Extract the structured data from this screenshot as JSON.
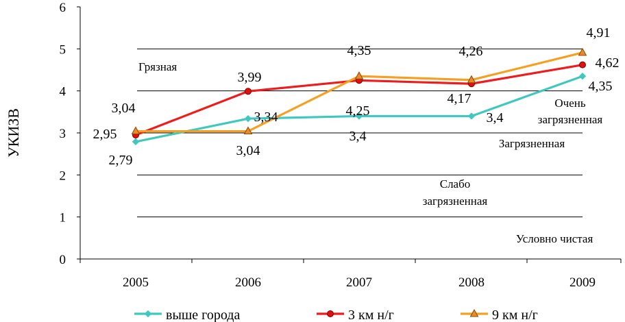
{
  "chart_data": {
    "type": "line",
    "ylabel": "УКИЗВ",
    "ylim": [
      0,
      6
    ],
    "yticks": [
      "0",
      "1",
      "2",
      "3",
      "4",
      "5",
      "6"
    ],
    "categories": [
      "2005",
      "2006",
      "2007",
      "2008",
      "2009"
    ],
    "series": [
      {
        "name": "выше города",
        "values": [
          2.79,
          3.34,
          3.4,
          3.4,
          4.35
        ],
        "labels": [
          "2,79",
          "3,34",
          "3,4",
          "3,4",
          "4,35"
        ],
        "color": "#40C8C0",
        "marker": "diamond"
      },
      {
        "name": "3 км н/г",
        "values": [
          2.95,
          3.99,
          4.25,
          4.17,
          4.62
        ],
        "labels": [
          "2,95",
          "3,99",
          "4,25",
          "4,17",
          "4,62"
        ],
        "color": "#EE1C1C",
        "marker": "circle"
      },
      {
        "name": "9 км н/г",
        "values": [
          3.04,
          3.04,
          4.35,
          4.26,
          4.91
        ],
        "labels": [
          "3,04",
          "3,04",
          "4,35",
          "4,26",
          "4,91"
        ],
        "color": "#F5A020",
        "marker": "triangle"
      }
    ],
    "zone_lines": [
      1,
      2,
      3,
      4,
      5
    ],
    "zones": [
      "Грязная",
      "Очень",
      "загрязненная",
      "Загрязненная",
      "Слабо",
      "загрязненная",
      "Условно чистая"
    ],
    "legend_position": "bottom"
  }
}
